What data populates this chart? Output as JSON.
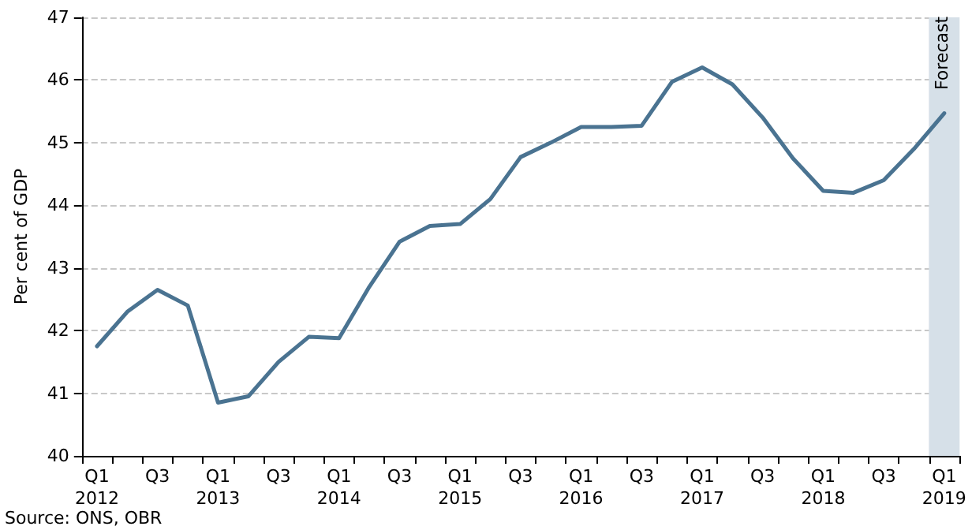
{
  "chart_data": {
    "type": "line",
    "ylabel": "Per cent of GDP",
    "categories": [
      "Q1\n2012",
      null,
      "Q3",
      null,
      "Q1\n2013",
      null,
      "Q3",
      null,
      "Q1\n2014",
      null,
      "Q3",
      null,
      "Q1\n2015",
      null,
      "Q3",
      null,
      "Q1\n2016",
      null,
      "Q3",
      null,
      "Q1\n2017",
      null,
      "Q3",
      null,
      "Q1\n2018",
      null,
      "Q3",
      null,
      "Q1\n2019"
    ],
    "series": [
      {
        "color": "#4a7391",
        "values": [
          41.75,
          42.3,
          42.65,
          42.4,
          40.85,
          40.95,
          41.5,
          41.9,
          41.88,
          42.7,
          43.42,
          43.67,
          43.7,
          44.1,
          44.77,
          45.0,
          45.25,
          45.25,
          45.27,
          45.97,
          46.2,
          45.93,
          45.4,
          44.75,
          44.23,
          44.2,
          44.4,
          44.9,
          45.47
        ]
      }
    ],
    "ylim": [
      40,
      47
    ],
    "yticks": [
      40,
      41,
      42,
      43,
      44,
      45,
      46,
      47
    ],
    "grid": "y",
    "marker": "none",
    "line_style": "solid",
    "bands": [
      {
        "axis": "x",
        "from": "Q1\n2019",
        "to": "Q1\n2019",
        "label": "Forecast",
        "color": "#d6e0e8"
      }
    ],
    "annotations": [
      "Source: ONS, OBR"
    ]
  }
}
